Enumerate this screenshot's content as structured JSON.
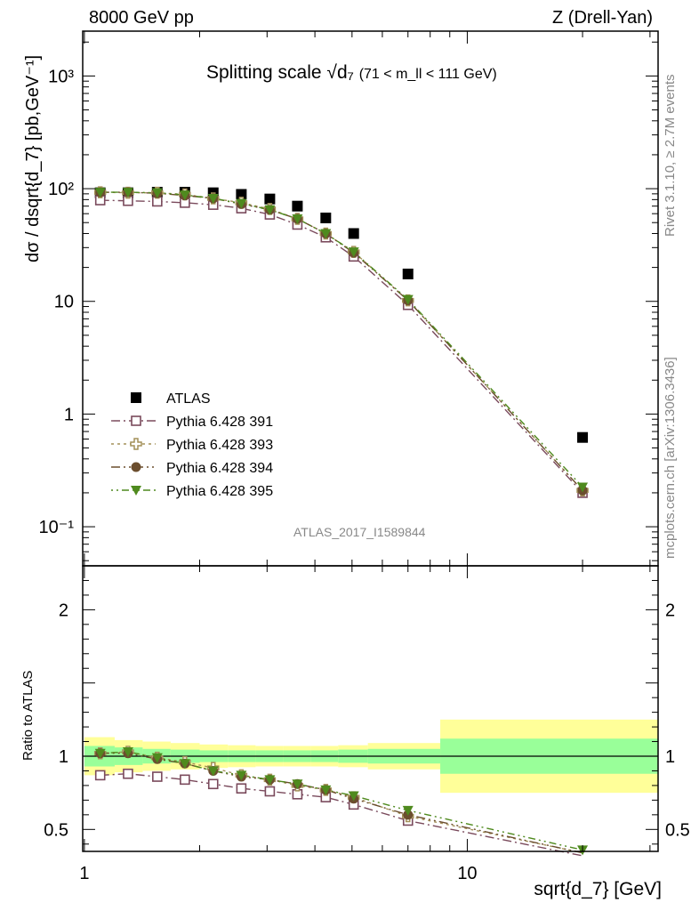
{
  "header": {
    "left": "8000 GeV pp",
    "right": "Z (Drell-Yan)"
  },
  "side": {
    "top": "Rivet 3.1.10, ≥ 2.7M events",
    "bottom": "mcplots.cern.ch [arXiv:1306.3436]"
  },
  "chart_data": [
    {
      "type": "scatter",
      "panel": "main",
      "title": "Splitting scale",
      "title_math": "√d₇",
      "title_suffix": "(71 < m_ll < 111 GeV)",
      "ylabel": "dσ / dsqrt{d_7} [pb,GeV⁻¹]",
      "xlabel": "sqrt{d_7} [GeV]",
      "xscale": "log",
      "yscale": "log",
      "xlim": [
        0.99,
        31.5
      ],
      "ylim": [
        0.045,
        2500
      ],
      "xticks": [
        "1",
        "10"
      ],
      "yticks": [
        "10⁻¹",
        "1",
        "10",
        "10²",
        "10³"
      ],
      "watermark": "ATLAS_2017_I1589844",
      "legend_position": "lower-left",
      "x": [
        1.1,
        1.3,
        1.55,
        1.83,
        2.17,
        2.57,
        3.05,
        3.6,
        4.27,
        5.05,
        7.0,
        20.0
      ],
      "series": [
        {
          "name": "ATLAS",
          "marker": "square-filled",
          "color": "#000000",
          "values": [
            92,
            92,
            93,
            93,
            92,
            89,
            81,
            70,
            55,
            40,
            17.5,
            0.62
          ]
        },
        {
          "name": "Pythia 6.428 391",
          "marker": "square-open",
          "color": "#7a4a5c",
          "dash": "10,4,2,4",
          "values": [
            79,
            78,
            77,
            75,
            72,
            67,
            59,
            48,
            37,
            25,
            9.3,
            0.2
          ]
        },
        {
          "name": "Pythia 6.428 393",
          "marker": "cross-open",
          "color": "#a39058",
          "dash": "3,4",
          "values": [
            93,
            92,
            92,
            89,
            82,
            75,
            66,
            54,
            40,
            27.5,
            10.2,
            0.21
          ]
        },
        {
          "name": "Pythia 6.428 394",
          "marker": "circle-filled",
          "color": "#6b4e2e",
          "dash": "10,4,2,4,2,4",
          "values": [
            93,
            93,
            91,
            87,
            82,
            73,
            65,
            54,
            40,
            27,
            10.2,
            0.21
          ]
        },
        {
          "name": "Pythia 6.428 395",
          "marker": "triangle-down-filled",
          "color": "#4f8a1e",
          "dash": "2,4,2,4,8,4",
          "values": [
            93,
            93,
            92,
            88,
            82,
            74,
            65,
            54,
            40,
            27.5,
            10.4,
            0.225
          ]
        }
      ]
    },
    {
      "type": "line",
      "panel": "ratio",
      "ylabel": "Ratio to ATLAS",
      "ylim": [
        0.35,
        2.3
      ],
      "yticks": [
        "0.5",
        "1",
        "2"
      ],
      "reference": 1.0,
      "bands": {
        "x_edges": [
          1.0,
          1.2,
          1.42,
          1.68,
          2.0,
          2.37,
          2.8,
          3.3,
          3.9,
          4.6,
          5.5,
          8.5,
          31.5
        ],
        "outer": [
          [
            0.87,
            1.13
          ],
          [
            0.89,
            1.11
          ],
          [
            0.9,
            1.1
          ],
          [
            0.91,
            1.09
          ],
          [
            0.92,
            1.08
          ],
          [
            0.925,
            1.075
          ],
          [
            0.93,
            1.07
          ],
          [
            0.93,
            1.07
          ],
          [
            0.93,
            1.07
          ],
          [
            0.925,
            1.075
          ],
          [
            0.91,
            1.09
          ],
          [
            0.75,
            1.25
          ]
        ],
        "inner": [
          [
            0.93,
            1.07
          ],
          [
            0.94,
            1.06
          ],
          [
            0.95,
            1.05
          ],
          [
            0.955,
            1.045
          ],
          [
            0.96,
            1.04
          ],
          [
            0.96,
            1.04
          ],
          [
            0.96,
            1.04
          ],
          [
            0.96,
            1.04
          ],
          [
            0.96,
            1.04
          ],
          [
            0.955,
            1.045
          ],
          [
            0.95,
            1.05
          ],
          [
            0.88,
            1.12
          ]
        ],
        "outer_color": "#ffff99",
        "inner_color": "#99ff99"
      },
      "x": [
        1.1,
        1.3,
        1.55,
        1.83,
        2.17,
        2.57,
        3.05,
        3.6,
        4.27,
        5.05,
        7.0,
        20.0
      ],
      "series": [
        {
          "name": "Pythia 6.428 391",
          "values": [
            0.87,
            0.88,
            0.86,
            0.84,
            0.81,
            0.78,
            0.76,
            0.74,
            0.72,
            0.67,
            0.56,
            0.32
          ]
        },
        {
          "name": "Pythia 6.428 393",
          "values": [
            1.02,
            1.03,
            0.99,
            0.96,
            0.92,
            0.87,
            0.84,
            0.8,
            0.77,
            0.72,
            0.59,
            0.34
          ]
        },
        {
          "name": "Pythia 6.428 394",
          "values": [
            1.02,
            1.02,
            0.98,
            0.95,
            0.9,
            0.86,
            0.84,
            0.81,
            0.77,
            0.71,
            0.6,
            0.34
          ]
        },
        {
          "name": "Pythia 6.428 395",
          "values": [
            1.02,
            1.03,
            0.99,
            0.95,
            0.9,
            0.87,
            0.84,
            0.81,
            0.77,
            0.73,
            0.63,
            0.36
          ]
        }
      ]
    }
  ]
}
